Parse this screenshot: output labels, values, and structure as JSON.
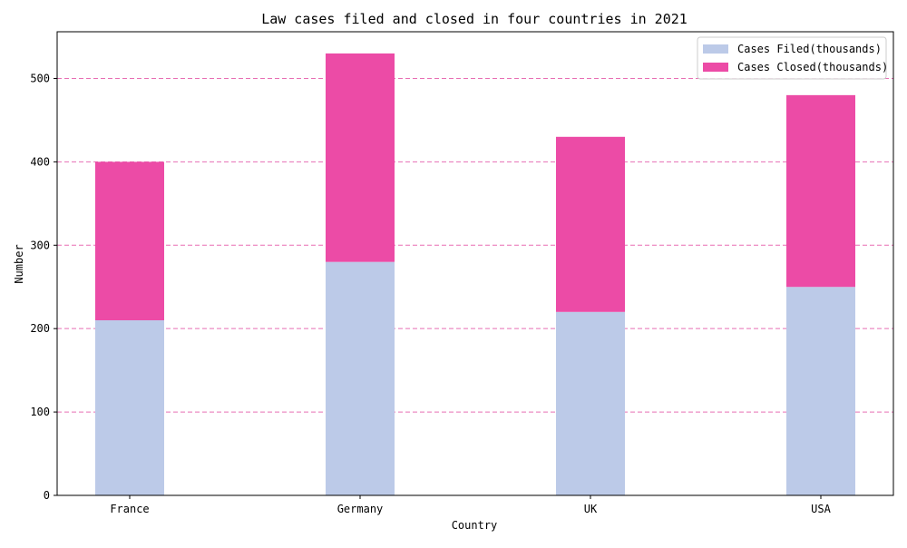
{
  "chart_data": {
    "type": "bar",
    "stacked": true,
    "title": "Law cases filed and closed in four countries in 2021",
    "xlabel": "Country",
    "ylabel": "Number",
    "categories": [
      "France",
      "Germany",
      "UK",
      "USA"
    ],
    "series": [
      {
        "name": "Cases Filed(thousands)",
        "values": [
          210,
          280,
          220,
          250
        ],
        "color": "#bccae8"
      },
      {
        "name": "Cases Closed(thousands)",
        "values": [
          190,
          250,
          210,
          230
        ],
        "color": "#ec4ba6"
      }
    ],
    "ylim": [
      0,
      556
    ],
    "yticks": [
      0,
      100,
      200,
      300,
      400,
      500
    ],
    "grid": {
      "axis": "y",
      "style": "dashed",
      "color": "#e86fb4"
    },
    "legend_position": "top-right"
  }
}
